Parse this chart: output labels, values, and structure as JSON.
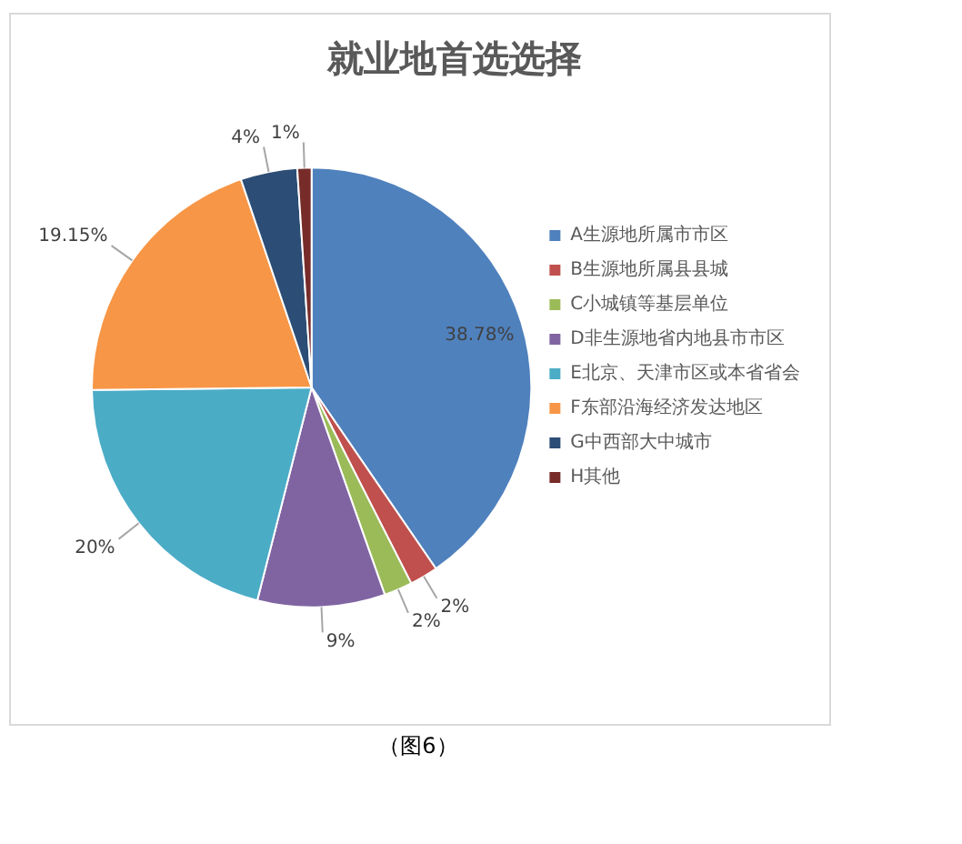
{
  "chart_data": {
    "type": "pie",
    "title": "就业地首选选择",
    "categories": [
      "A生源地所属市市区",
      "B生源地所属县县城",
      "C小城镇等基层单位",
      "D非生源地省内地县市市区",
      "E北京、天津市区或本省省会",
      "F东部沿海经济发达地区",
      "G中西部大中城市",
      "H其他"
    ],
    "values": [
      38.78,
      2,
      2,
      9,
      20,
      19.15,
      4,
      1
    ],
    "colors": [
      "#4f81bd",
      "#c0504d",
      "#9bbb59",
      "#8064a2",
      "#4bacc6",
      "#f79646",
      "#2c4d75",
      "#772c2a"
    ],
    "value_labels": [
      "38.78%",
      "2%",
      "2%",
      "9%",
      "20%",
      "19.15%",
      "4%",
      "1%"
    ],
    "legend": "right",
    "annotations": [
      "（图6）"
    ]
  }
}
